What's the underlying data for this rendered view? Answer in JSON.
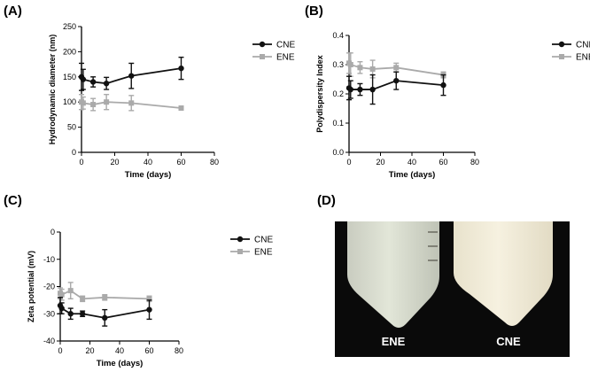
{
  "panel_labels": {
    "a": "(A)",
    "b": "(B)",
    "c": "(C)",
    "d": "(D)"
  },
  "photo": {
    "tube_left_label": "ENE",
    "tube_right_label": "CNE"
  },
  "colors": {
    "cne": "#111111",
    "ene": "#aaaaaa",
    "photo_bg": "#0a0a0a"
  },
  "chart_data": [
    {
      "id": "A",
      "type": "line",
      "title": "",
      "xlabel": "Time (days)",
      "ylabel": "Hydrodynamic diameter (nm)",
      "xlim": [
        0,
        80
      ],
      "ylim": [
        0,
        250
      ],
      "xticks": [
        "0",
        "20",
        "40",
        "60",
        "80"
      ],
      "yticks": [
        "0",
        "50",
        "100",
        "150",
        "200",
        "250"
      ],
      "x_tick_values": [
        0,
        20,
        40,
        60,
        80
      ],
      "y_tick_values": [
        0,
        50,
        100,
        150,
        200,
        250
      ],
      "legend_position": "right",
      "series": [
        {
          "name": "CNE",
          "color": "#111111",
          "x": [
            0,
            1,
            7,
            15,
            30,
            60
          ],
          "y": [
            150,
            145,
            140,
            137,
            152,
            167
          ],
          "err": [
            27,
            20,
            10,
            12,
            25,
            22
          ]
        },
        {
          "name": "ENE",
          "color": "#aaaaaa",
          "x": [
            0,
            1,
            7,
            15,
            30,
            60
          ],
          "y": [
            100,
            98,
            95,
            100,
            98,
            88
          ],
          "err": [
            15,
            12,
            12,
            15,
            15,
            3
          ]
        }
      ]
    },
    {
      "id": "B",
      "type": "line",
      "title": "",
      "xlabel": "Time (days)",
      "ylabel": "Polydispersity Index",
      "xlim": [
        0,
        80
      ],
      "ylim": [
        0,
        0.4
      ],
      "xticks": [
        "0",
        "20",
        "40",
        "60",
        "80"
      ],
      "yticks": [
        "0.0",
        "0.1",
        "0.2",
        "0.3",
        "0.4"
      ],
      "x_tick_values": [
        0,
        20,
        40,
        60,
        80
      ],
      "y_tick_values": [
        0,
        0.1,
        0.2,
        0.3,
        0.4
      ],
      "legend_position": "right",
      "series": [
        {
          "name": "CNE",
          "color": "#111111",
          "x": [
            0,
            1,
            7,
            15,
            30,
            60
          ],
          "y": [
            0.22,
            0.215,
            0.215,
            0.215,
            0.245,
            0.23
          ],
          "err": [
            0.04,
            0.03,
            0.02,
            0.05,
            0.03,
            0.035
          ]
        },
        {
          "name": "ENE",
          "color": "#aaaaaa",
          "x": [
            0,
            1,
            7,
            15,
            30,
            60
          ],
          "y": [
            0.305,
            0.3,
            0.29,
            0.285,
            0.29,
            0.265
          ],
          "err": [
            0.035,
            0.04,
            0.02,
            0.03,
            0.015,
            0.01
          ]
        }
      ]
    },
    {
      "id": "C",
      "type": "line",
      "title": "",
      "xlabel": "Time (days)",
      "ylabel": "Zeta potential (mV)",
      "xlim": [
        0,
        80
      ],
      "ylim": [
        -40,
        0
      ],
      "xticks": [
        "0",
        "20",
        "40",
        "60",
        "80"
      ],
      "yticks": [
        "-40",
        "-30",
        "-20",
        "-10",
        "0"
      ],
      "x_tick_values": [
        0,
        20,
        40,
        60,
        80
      ],
      "y_tick_values": [
        -40,
        -30,
        -20,
        -10,
        0
      ],
      "legend_position": "right",
      "series": [
        {
          "name": "CNE",
          "color": "#111111",
          "x": [
            0,
            1,
            7,
            15,
            30,
            60
          ],
          "y": [
            -27,
            -28,
            -30,
            -30,
            -31.5,
            -28.5
          ],
          "err": [
            3,
            2,
            2,
            1,
            3,
            3.5
          ]
        },
        {
          "name": "ENE",
          "color": "#aaaaaa",
          "x": [
            0,
            1,
            7,
            15,
            30,
            60
          ],
          "y": [
            -22.5,
            -23,
            -21.5,
            -24.5,
            -24,
            -24.5
          ],
          "err": [
            2,
            2,
            3,
            1,
            1,
            1
          ]
        }
      ]
    }
  ]
}
